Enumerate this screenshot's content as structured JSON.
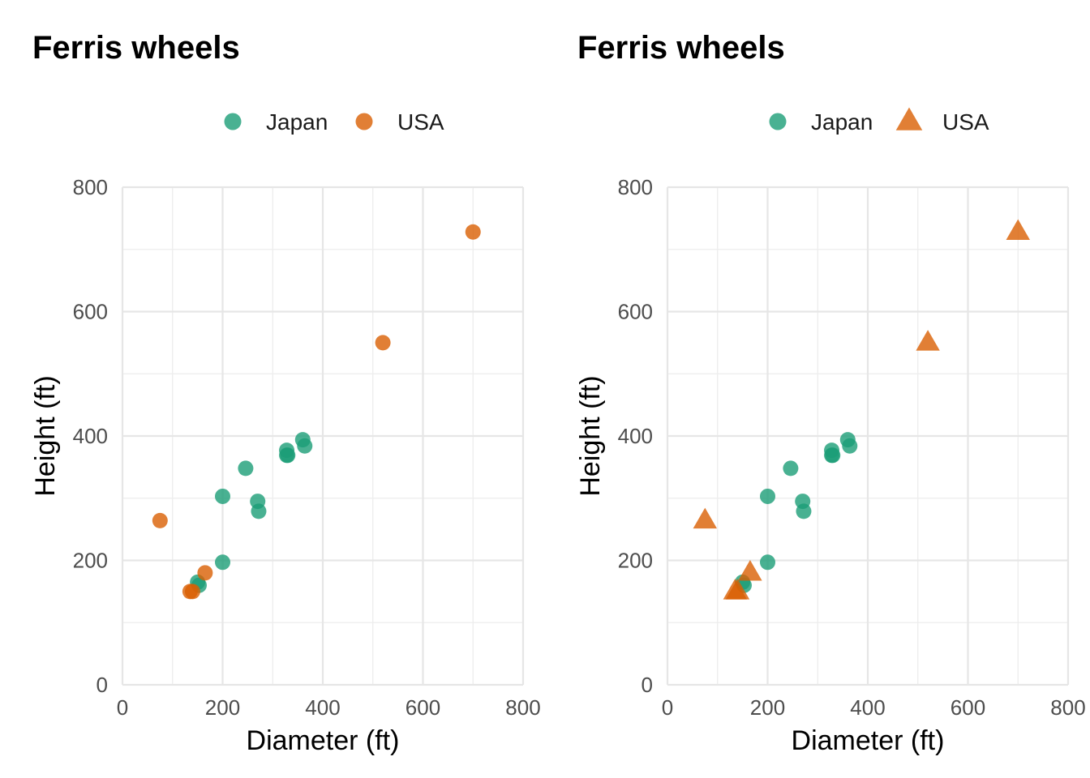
{
  "colors": {
    "Japan": "#1b9e77",
    "USA": "#d95f02"
  },
  "chart_data": [
    {
      "type": "scatter",
      "title": "Ferris wheels",
      "xlabel": "Diameter (ft)",
      "ylabel": "Height (ft)",
      "xlim": [
        0,
        800
      ],
      "ylim": [
        0,
        800
      ],
      "xticks": [
        "0",
        "200",
        "400",
        "600",
        "800"
      ],
      "yticks": [
        "0",
        "200",
        "400",
        "600",
        "800"
      ],
      "grid": true,
      "legend_position": "top",
      "series": [
        {
          "name": "Japan",
          "shape": "circle",
          "x": [
            150,
            153,
            200,
            200,
            246,
            270,
            272,
            328,
            328,
            330,
            360,
            364
          ],
          "y": [
            165,
            160,
            197,
            303,
            348,
            295,
            279,
            377,
            369,
            369,
            394,
            384
          ]
        },
        {
          "name": "USA",
          "shape": "circle",
          "x": [
            75,
            135,
            140,
            165,
            520,
            700
          ],
          "y": [
            264,
            150,
            150,
            180,
            550,
            728
          ]
        }
      ]
    },
    {
      "type": "scatter",
      "title": "Ferris wheels",
      "xlabel": "Diameter (ft)",
      "ylabel": "Height (ft)",
      "xlim": [
        0,
        800
      ],
      "ylim": [
        0,
        800
      ],
      "xticks": [
        "0",
        "200",
        "400",
        "600",
        "800"
      ],
      "yticks": [
        "0",
        "200",
        "400",
        "600",
        "800"
      ],
      "grid": true,
      "legend_position": "top",
      "series": [
        {
          "name": "Japan",
          "shape": "circle",
          "x": [
            150,
            153,
            200,
            200,
            246,
            270,
            272,
            328,
            328,
            330,
            360,
            364
          ],
          "y": [
            165,
            160,
            197,
            303,
            348,
            295,
            279,
            377,
            369,
            369,
            394,
            384
          ]
        },
        {
          "name": "USA",
          "shape": "triangle",
          "x": [
            75,
            135,
            140,
            165,
            520,
            700
          ],
          "y": [
            264,
            150,
            150,
            180,
            550,
            728
          ]
        }
      ]
    }
  ]
}
